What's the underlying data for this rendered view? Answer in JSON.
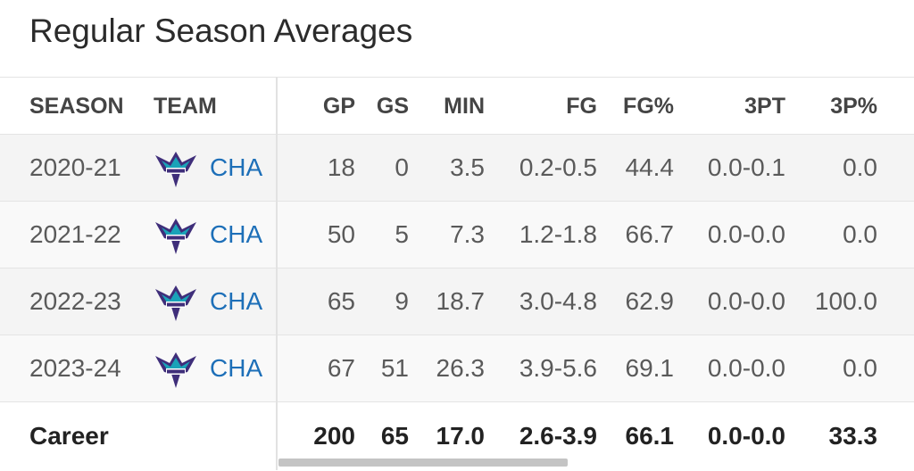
{
  "header": {
    "title": "Regular Season Averages"
  },
  "table": {
    "columns": [
      "SEASON",
      "TEAM",
      "GP",
      "GS",
      "MIN",
      "FG",
      "FG%",
      "3PT",
      "3P%"
    ],
    "rows": [
      [
        "2020-21",
        "CHA",
        "18",
        "0",
        "3.5",
        "0.2-0.5",
        "44.4",
        "0.0-0.1",
        "0.0"
      ],
      [
        "2021-22",
        "CHA",
        "50",
        "5",
        "7.3",
        "1.2-1.8",
        "66.7",
        "0.0-0.0",
        "0.0"
      ],
      [
        "2022-23",
        "CHA",
        "65",
        "9",
        "18.7",
        "3.0-4.8",
        "62.9",
        "0.0-0.0",
        "100.0"
      ],
      [
        "2023-24",
        "CHA",
        "67",
        "51",
        "26.3",
        "3.9-5.6",
        "69.1",
        "0.0-0.0",
        "0.0"
      ]
    ],
    "career": [
      "Career",
      "200",
      "65",
      "17.0",
      "2.6-3.9",
      "66.1",
      "0.0-0.0",
      "33.3"
    ]
  }
}
